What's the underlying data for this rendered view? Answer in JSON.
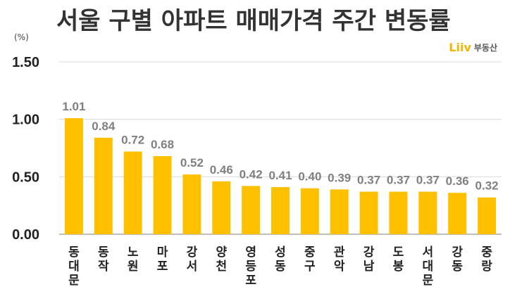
{
  "title": "서울 구별 아파트 매매가격 주간 변동률",
  "unit_label": "(%)",
  "logo": {
    "mark": "Liiv",
    "text": "부동산"
  },
  "colors": {
    "bar": "#ffc000",
    "grid": "#d9d9d9",
    "axis": "#7f7f7f",
    "data_label": "#808080",
    "logo": "#f2b600"
  },
  "chart_data": {
    "type": "bar",
    "categories": [
      "동대문",
      "동작",
      "노원",
      "마포",
      "강서",
      "양천",
      "영등포",
      "성동",
      "중구",
      "관악",
      "강남",
      "도봉",
      "서대문",
      "강동",
      "중랑"
    ],
    "values": [
      1.01,
      0.84,
      0.72,
      0.68,
      0.52,
      0.46,
      0.42,
      0.41,
      0.4,
      0.39,
      0.37,
      0.37,
      0.37,
      0.36,
      0.32
    ],
    "value_labels": [
      "1.01",
      "0.84",
      "0.72",
      "0.68",
      "0.52",
      "0.46",
      "0.42",
      "0.41",
      "0.40",
      "0.39",
      "0.37",
      "0.37",
      "0.37",
      "0.36",
      "0.32"
    ],
    "yticks": [
      "0.00",
      "0.50",
      "1.00",
      "1.50"
    ],
    "ylim": [
      0,
      1.5
    ],
    "orientation": "vertical",
    "category_label_orientation": "stacked-vertical",
    "grid": true,
    "legend": "none"
  }
}
